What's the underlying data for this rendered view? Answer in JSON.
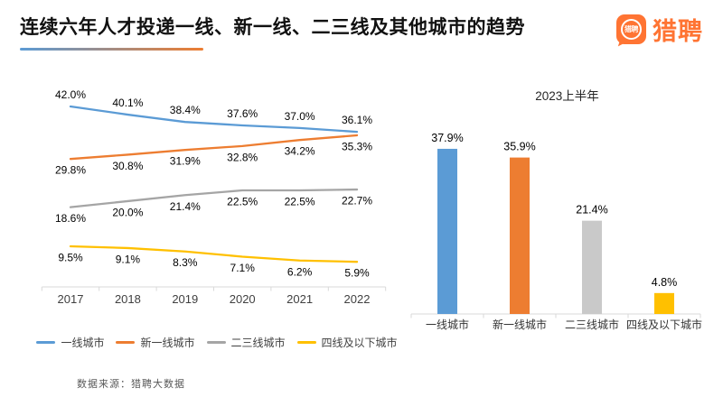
{
  "header": {
    "title": "连续六年人才投递一线、新一线、二三线及其他城市的趋势",
    "logo_icon_text": "猎聘",
    "logo_wordmark": "猎聘",
    "brand_color": "#FF7433",
    "underline_gradient": [
      "#5B9BD5",
      "#ED7D31"
    ]
  },
  "source_note": "数据来源：猎聘大数据",
  "chart_data": [
    {
      "type": "line",
      "title": "",
      "x": [
        "2017",
        "2018",
        "2019",
        "2020",
        "2021",
        "2022"
      ],
      "unit": "%",
      "grid": false,
      "legend_position": "bottom",
      "ylim": [
        0,
        45
      ],
      "axis_color": "#D9D9D9",
      "series": [
        {
          "name": "一线城市",
          "color": "#5B9BD5",
          "values": [
            42.0,
            40.1,
            38.4,
            37.6,
            37.0,
            36.1
          ],
          "label_position": "above"
        },
        {
          "name": "新一线城市",
          "color": "#ED7D31",
          "values": [
            29.8,
            30.8,
            31.9,
            32.8,
            34.2,
            35.3
          ],
          "label_position": "below"
        },
        {
          "name": "二三线城市",
          "color": "#A5A5A5",
          "values": [
            18.6,
            20.0,
            21.4,
            22.5,
            22.5,
            22.7
          ],
          "label_position": "below"
        },
        {
          "name": "四线及以下城市",
          "color": "#FFC000",
          "values": [
            9.5,
            9.1,
            8.3,
            7.1,
            6.2,
            5.9
          ],
          "label_position": "below"
        }
      ]
    },
    {
      "type": "bar",
      "title": "2023上半年",
      "categories": [
        "一线城市",
        "新一线城市",
        "二三线城市",
        "四线及以下城市"
      ],
      "values": [
        37.9,
        35.9,
        21.4,
        4.8
      ],
      "colors": [
        "#5B9BD5",
        "#ED7D31",
        "#C9C9C9",
        "#FFC000"
      ],
      "unit": "%",
      "grid": false,
      "ylim": [
        0,
        45
      ],
      "axis_color": "#D9D9D9"
    }
  ]
}
